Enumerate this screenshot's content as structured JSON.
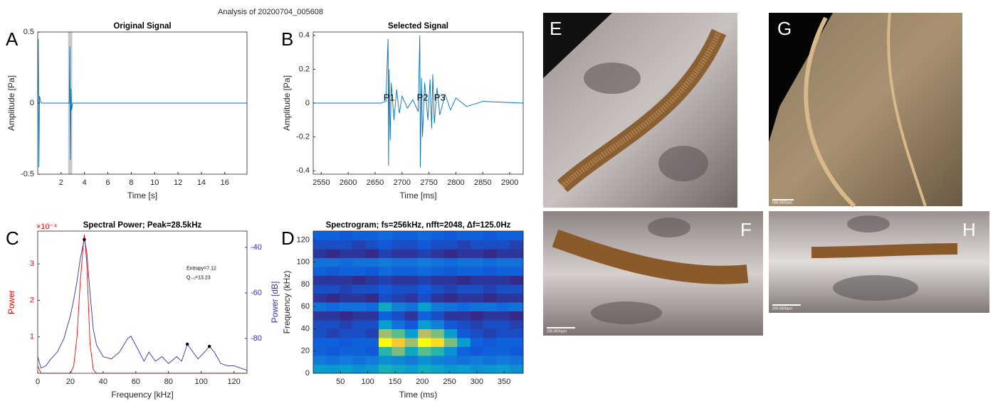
{
  "title": "Analysis of 20200704_005608",
  "chart_data": [
    {
      "type": "line",
      "panel": "A",
      "title": "Original Signal",
      "xlabel": "Time [s]",
      "ylabel": "Amplitude [Pa]",
      "xlim": [
        0,
        17.9
      ],
      "xticks": [
        2,
        4,
        6,
        8,
        10,
        12,
        14,
        16
      ],
      "ylim": [
        -0.5,
        0.5
      ],
      "yticks": [
        -0.5,
        0,
        0.5
      ],
      "selection": [
        2.6,
        2.95
      ],
      "x": [
        0,
        0.05,
        0.1,
        0.15,
        0.3,
        2.7,
        2.75,
        2.8,
        2.85,
        2.9,
        3.0,
        17.9
      ],
      "series": [
        {
          "color": "#0072bd",
          "values": [
            0,
            0.45,
            -0.45,
            0.05,
            0,
            0,
            0.4,
            -0.4,
            0.1,
            -0.05,
            0,
            0
          ]
        }
      ]
    },
    {
      "type": "line",
      "panel": "B",
      "title": "Selected Signal",
      "xlabel": "Time [ms]",
      "ylabel": "Amplitude [Pa]",
      "xlim": [
        2535,
        2925
      ],
      "xticks": [
        2550,
        2600,
        2650,
        2700,
        2750,
        2800,
        2850,
        2900
      ],
      "ylim": [
        -0.42,
        0.42
      ],
      "yticks": [
        -0.4,
        -0.2,
        0,
        0.2,
        0.4
      ],
      "x": [
        2535,
        2660,
        2670,
        2674,
        2675,
        2676,
        2678,
        2680,
        2685,
        2690,
        2695,
        2700,
        2710,
        2720,
        2730,
        2733,
        2734,
        2736,
        2738,
        2742,
        2748,
        2752,
        2755,
        2757,
        2760,
        2765,
        2770,
        2780,
        2790,
        2800,
        2820,
        2850,
        2925
      ],
      "series": [
        {
          "color": "#0072bd",
          "values": [
            0,
            0,
            0.01,
            0.38,
            -0.37,
            0.2,
            -0.22,
            0.12,
            -0.1,
            0.08,
            -0.06,
            0.04,
            -0.03,
            0.02,
            -0.05,
            0.4,
            -0.38,
            0.15,
            -0.2,
            0.12,
            -0.1,
            0.14,
            -0.15,
            0.17,
            -0.12,
            0.09,
            -0.07,
            0.05,
            -0.04,
            0.03,
            -0.02,
            0.01,
            0
          ]
        }
      ],
      "annotations": [
        {
          "text": "P1",
          "x": 2676,
          "y": 0.03
        },
        {
          "text": "P2",
          "x": 2738,
          "y": 0.03
        },
        {
          "text": "P3",
          "x": 2770,
          "y": 0.03
        }
      ]
    },
    {
      "type": "line",
      "panel": "C",
      "title": "Spectral Power; Peak=28.5kHz",
      "xlabel": "Frequency [kHz]",
      "ylabel": "Power",
      "y2label": "Power [dB]",
      "y_multiplier": "×10⁻⁴",
      "xlim": [
        0,
        128
      ],
      "xticks": [
        0,
        20,
        40,
        60,
        80,
        100,
        120
      ],
      "ylim": [
        0,
        0.00039
      ],
      "yticks": [
        {
          "value": 0.0001,
          "label": "1"
        },
        {
          "value": 0.0002,
          "label": "2"
        },
        {
          "value": 0.0003,
          "label": "3"
        }
      ],
      "y2lim": [
        -95.3,
        -32.8
      ],
      "y2ticks": [
        -80,
        -60,
        -40
      ],
      "x": [
        0,
        2,
        5,
        8,
        12,
        16,
        20,
        22,
        24,
        26,
        28,
        28.5,
        29,
        30,
        32,
        34,
        36,
        40,
        45,
        50,
        55,
        57,
        60,
        65,
        68,
        72,
        76,
        80,
        85,
        88,
        91.5,
        95,
        98,
        102,
        105,
        108,
        112,
        116,
        120,
        124,
        128
      ],
      "series": [
        {
          "color": "#ff0000",
          "values": [
            2e-05,
            0,
            0,
            0,
            0,
            0,
            0,
            2e-05,
            0.0001,
            0.00025,
            0.00036,
            0.00038,
            0.00036,
            0.0003,
            8e-05,
            1e-05,
            0,
            0,
            0,
            0,
            0,
            0,
            0,
            0,
            0,
            0,
            0,
            0,
            0,
            0,
            0,
            0,
            0,
            0,
            0,
            0,
            0,
            0,
            0,
            0,
            0
          ]
        },
        {
          "color": "#3333aa",
          "axis": "y2",
          "values": [
            -88,
            -93,
            -92,
            -89,
            -86,
            -80,
            -70,
            -63,
            -55,
            -45,
            -38,
            -36.5,
            -38,
            -42,
            -60,
            -76,
            -83,
            -88,
            -89,
            -86,
            -80,
            -79,
            -83,
            -90,
            -86,
            -90,
            -88,
            -91,
            -88,
            -90,
            -82.5,
            -86,
            -89,
            -86,
            -83.5,
            -86,
            -91,
            -92,
            -92,
            -93,
            -94
          ]
        }
      ],
      "peaks": {
        "x": [
          28.5,
          91.5,
          105
        ],
        "values": [
          -36.5,
          -82.5,
          -83.5
        ]
      },
      "annotations": [
        {
          "text": "Entropy=7.12",
          "x": 91,
          "y": 0.000287
        },
        {
          "text": "Q₋₃=13.23",
          "x": 91,
          "y": 0.000262
        }
      ]
    },
    {
      "type": "heatmap",
      "panel": "D",
      "title": "Spectrogram; fs=256kHz, nfft=2048, Δf=125.0Hz",
      "xlabel": "Time (ms)",
      "ylabel": "Frequency (kHz)",
      "xlim": [
        0,
        385
      ],
      "xticks": [
        50,
        100,
        150,
        200,
        250,
        300,
        350
      ],
      "ylim": [
        0,
        128
      ],
      "yticks": [
        0,
        20,
        40,
        60,
        80,
        100,
        120
      ],
      "x_edges": [
        0,
        24,
        48,
        72,
        96,
        120,
        144,
        168,
        192,
        216,
        240,
        264,
        288,
        312,
        336,
        360,
        385
      ],
      "y_edges": [
        0,
        8,
        16,
        24,
        32,
        40,
        48,
        56,
        64,
        72,
        80,
        88,
        96,
        104,
        112,
        120,
        128
      ],
      "z": [
        [
          -80,
          -81,
          -80,
          -82,
          -81,
          -76,
          -78,
          -80,
          -77,
          -79,
          -81,
          -80,
          -82,
          -81,
          -80,
          -82
        ],
        [
          -85,
          -86,
          -85,
          -86,
          -85,
          -82,
          -83,
          -85,
          -82,
          -84,
          -85,
          -86,
          -85,
          -86,
          -85,
          -86
        ],
        [
          -88,
          -89,
          -88,
          -88,
          -89,
          -75,
          -70,
          -78,
          -72,
          -75,
          -82,
          -88,
          -89,
          -88,
          -88,
          -89
        ],
        [
          -88,
          -88,
          -89,
          -88,
          -88,
          -55,
          -60,
          -68,
          -55,
          -58,
          -70,
          -80,
          -88,
          -89,
          -88,
          -88
        ],
        [
          -90,
          -91,
          -90,
          -90,
          -91,
          -68,
          -72,
          -80,
          -66,
          -70,
          -80,
          -89,
          -90,
          -91,
          -90,
          -90
        ],
        [
          -90,
          -90,
          -91,
          -90,
          -90,
          -80,
          -86,
          -89,
          -80,
          -84,
          -89,
          -90,
          -91,
          -90,
          -90,
          -91
        ],
        [
          -92,
          -92,
          -93,
          -92,
          -92,
          -88,
          -90,
          -92,
          -88,
          -90,
          -92,
          -92,
          -93,
          -92,
          -92,
          -93
        ],
        [
          -86,
          -87,
          -86,
          -86,
          -87,
          -78,
          -84,
          -86,
          -80,
          -85,
          -86,
          -87,
          -86,
          -86,
          -87,
          -86
        ],
        [
          -92,
          -93,
          -92,
          -92,
          -93,
          -90,
          -91,
          -92,
          -90,
          -92,
          -93,
          -92,
          -92,
          -93,
          -92,
          -92
        ],
        [
          -90,
          -90,
          -91,
          -90,
          -90,
          -89,
          -90,
          -90,
          -89,
          -90,
          -91,
          -90,
          -90,
          -91,
          -90,
          -90
        ],
        [
          -92,
          -92,
          -92,
          -93,
          -92,
          -91,
          -92,
          -92,
          -91,
          -92,
          -92,
          -93,
          -92,
          -92,
          -92,
          -93
        ],
        [
          -88,
          -89,
          -88,
          -88,
          -89,
          -87,
          -88,
          -88,
          -87,
          -88,
          -89,
          -88,
          -88,
          -89,
          -88,
          -88
        ],
        [
          -86,
          -86,
          -87,
          -86,
          -86,
          -85,
          -86,
          -86,
          -85,
          -86,
          -87,
          -86,
          -86,
          -87,
          -86,
          -86
        ],
        [
          -92,
          -93,
          -92,
          -92,
          -93,
          -91,
          -92,
          -92,
          -91,
          -92,
          -93,
          -92,
          -92,
          -93,
          -92,
          -92
        ],
        [
          -90,
          -90,
          -90,
          -91,
          -90,
          -89,
          -90,
          -90,
          -89,
          -90,
          -90,
          -91,
          -90,
          -90,
          -90,
          -91
        ],
        [
          -88,
          -88,
          -89,
          -88,
          -88,
          -87,
          -88,
          -88,
          -87,
          -88,
          -89,
          -88,
          -88,
          -89,
          -88,
          -88
        ]
      ]
    }
  ],
  "photos": [
    {
      "label": "E"
    },
    {
      "label": "G",
      "scale_bar": "500.0000µm"
    },
    {
      "label": "F",
      "scale_bar": "200.0000µm"
    },
    {
      "label": "H",
      "scale_bar": "200.0000µm"
    }
  ]
}
